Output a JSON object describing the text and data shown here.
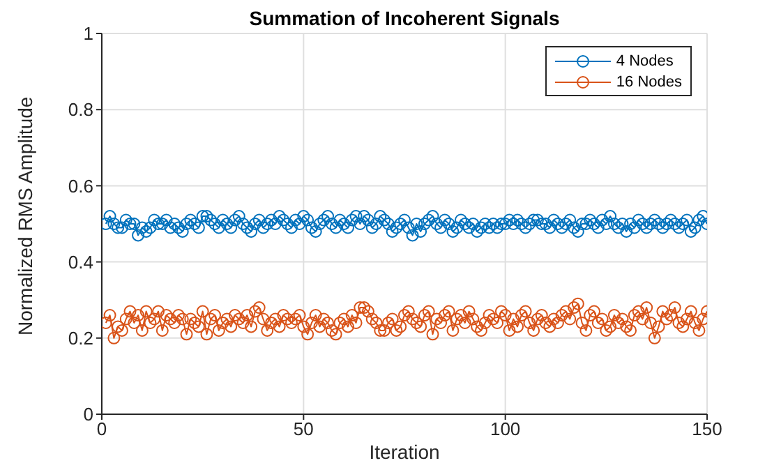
{
  "chart_data": {
    "type": "line",
    "title": "Summation of Incoherent Signals",
    "xlabel": "Iteration",
    "ylabel": "Normalized RMS Amplitude",
    "x": [
      1,
      2,
      3,
      4,
      5,
      6,
      7,
      8,
      9,
      10,
      11,
      12,
      13,
      14,
      15,
      16,
      17,
      18,
      19,
      20,
      21,
      22,
      23,
      24,
      25,
      26,
      27,
      28,
      29,
      30,
      31,
      32,
      33,
      34,
      35,
      36,
      37,
      38,
      39,
      40,
      41,
      42,
      43,
      44,
      45,
      46,
      47,
      48,
      49,
      50,
      51,
      52,
      53,
      54,
      55,
      56,
      57,
      58,
      59,
      60,
      61,
      62,
      63,
      64,
      65,
      66,
      67,
      68,
      69,
      70,
      71,
      72,
      73,
      74,
      75,
      76,
      77,
      78,
      79,
      80,
      81,
      82,
      83,
      84,
      85,
      86,
      87,
      88,
      89,
      90,
      91,
      92,
      93,
      94,
      95,
      96,
      97,
      98,
      99,
      100,
      101,
      102,
      103,
      104,
      105,
      106,
      107,
      108,
      109,
      110,
      111,
      112,
      113,
      114,
      115,
      116,
      117,
      118,
      119,
      120,
      121,
      122,
      123,
      124,
      125,
      126,
      127,
      128,
      129,
      130,
      131,
      132,
      133,
      134,
      135,
      136,
      137,
      138,
      139,
      140,
      141,
      142,
      143,
      144,
      145,
      146,
      147,
      148,
      149,
      150
    ],
    "series": [
      {
        "name": "4 Nodes",
        "color": "#0072bd",
        "values": [
          0.5,
          0.52,
          0.5,
          0.49,
          0.49,
          0.51,
          0.5,
          0.5,
          0.47,
          0.49,
          0.48,
          0.49,
          0.51,
          0.5,
          0.5,
          0.51,
          0.49,
          0.5,
          0.49,
          0.48,
          0.5,
          0.51,
          0.5,
          0.49,
          0.52,
          0.52,
          0.51,
          0.5,
          0.49,
          0.51,
          0.5,
          0.49,
          0.51,
          0.52,
          0.5,
          0.49,
          0.48,
          0.5,
          0.51,
          0.49,
          0.5,
          0.51,
          0.5,
          0.52,
          0.51,
          0.5,
          0.49,
          0.51,
          0.5,
          0.52,
          0.51,
          0.49,
          0.48,
          0.5,
          0.51,
          0.52,
          0.5,
          0.49,
          0.51,
          0.5,
          0.49,
          0.51,
          0.52,
          0.5,
          0.52,
          0.51,
          0.49,
          0.5,
          0.52,
          0.51,
          0.5,
          0.48,
          0.49,
          0.5,
          0.51,
          0.49,
          0.47,
          0.5,
          0.48,
          0.5,
          0.51,
          0.52,
          0.5,
          0.49,
          0.51,
          0.5,
          0.48,
          0.49,
          0.51,
          0.5,
          0.49,
          0.5,
          0.48,
          0.49,
          0.5,
          0.49,
          0.5,
          0.49,
          0.5,
          0.5,
          0.51,
          0.5,
          0.51,
          0.5,
          0.49,
          0.5,
          0.51,
          0.51,
          0.5,
          0.5,
          0.49,
          0.51,
          0.5,
          0.49,
          0.5,
          0.51,
          0.49,
          0.48,
          0.5,
          0.5,
          0.51,
          0.5,
          0.49,
          0.51,
          0.5,
          0.52,
          0.5,
          0.49,
          0.5,
          0.48,
          0.5,
          0.49,
          0.51,
          0.5,
          0.49,
          0.5,
          0.51,
          0.5,
          0.49,
          0.5,
          0.51,
          0.5,
          0.49,
          0.5,
          0.51,
          0.48,
          0.49,
          0.51,
          0.52,
          0.5
        ]
      },
      {
        "name": "16 Nodes",
        "color": "#d95319",
        "values": [
          0.24,
          0.26,
          0.2,
          0.23,
          0.22,
          0.25,
          0.27,
          0.24,
          0.26,
          0.22,
          0.27,
          0.24,
          0.25,
          0.27,
          0.22,
          0.26,
          0.25,
          0.24,
          0.26,
          0.25,
          0.21,
          0.25,
          0.24,
          0.23,
          0.27,
          0.21,
          0.25,
          0.26,
          0.22,
          0.24,
          0.25,
          0.23,
          0.26,
          0.25,
          0.24,
          0.26,
          0.23,
          0.27,
          0.28,
          0.25,
          0.22,
          0.24,
          0.25,
          0.23,
          0.26,
          0.25,
          0.24,
          0.25,
          0.26,
          0.23,
          0.21,
          0.24,
          0.26,
          0.23,
          0.25,
          0.24,
          0.22,
          0.21,
          0.24,
          0.25,
          0.23,
          0.26,
          0.24,
          0.28,
          0.28,
          0.27,
          0.25,
          0.24,
          0.22,
          0.22,
          0.24,
          0.25,
          0.22,
          0.23,
          0.26,
          0.27,
          0.25,
          0.24,
          0.23,
          0.26,
          0.27,
          0.21,
          0.25,
          0.24,
          0.26,
          0.27,
          0.22,
          0.25,
          0.26,
          0.24,
          0.27,
          0.25,
          0.23,
          0.22,
          0.24,
          0.26,
          0.25,
          0.24,
          0.27,
          0.26,
          0.22,
          0.25,
          0.23,
          0.26,
          0.27,
          0.24,
          0.22,
          0.25,
          0.26,
          0.24,
          0.23,
          0.25,
          0.24,
          0.26,
          0.27,
          0.25,
          0.28,
          0.29,
          0.24,
          0.22,
          0.26,
          0.27,
          0.24,
          0.25,
          0.22,
          0.23,
          0.26,
          0.24,
          0.25,
          0.23,
          0.22,
          0.26,
          0.27,
          0.25,
          0.28,
          0.24,
          0.2,
          0.23,
          0.27,
          0.25,
          0.26,
          0.28,
          0.24,
          0.23,
          0.25,
          0.27,
          0.24,
          0.22,
          0.25,
          0.27
        ]
      }
    ],
    "xlim": [
      0,
      150
    ],
    "xticks": [
      0,
      50,
      100,
      150
    ],
    "ylim": [
      0,
      1
    ],
    "yticks": [
      0,
      0.2,
      0.4,
      0.6,
      0.8,
      1
    ],
    "grid": true,
    "legend": "top right",
    "marker": "circle",
    "line_style": "solid"
  }
}
